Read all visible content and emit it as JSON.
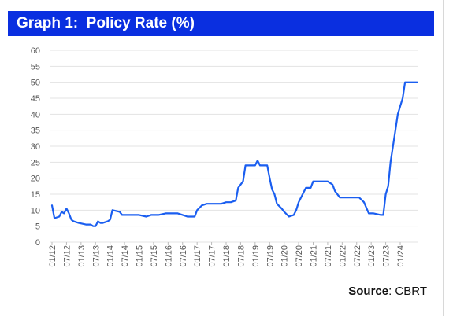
{
  "title": "Graph 1:  Policy Rate (%)",
  "source": {
    "label": "Source",
    "text": ": CBRT"
  },
  "colors": {
    "title_bg": "#0a2fe0",
    "line": "#1a5ef0",
    "grid": "#e3e3e3",
    "axis_text": "#555555"
  },
  "chart_data": {
    "type": "line",
    "title": "Policy Rate (%)",
    "xlabel": "",
    "ylabel": "",
    "ylim": [
      0,
      60
    ],
    "yticks": [
      "0",
      "5",
      "10",
      "15",
      "20",
      "25",
      "30",
      "35",
      "40",
      "45",
      "50",
      "55",
      "60"
    ],
    "xticks": [
      "01/12",
      "07/12",
      "01/13",
      "07/13",
      "01/14",
      "07/14",
      "01/15",
      "07/15",
      "01/16",
      "07/16",
      "01/17",
      "07/17",
      "01/18",
      "07/18",
      "01/19",
      "07/19",
      "01/20",
      "07/20",
      "01/21",
      "07/21",
      "01/22",
      "07/22",
      "01/23",
      "07/23",
      "01/24"
    ],
    "grid": true,
    "legend": "none",
    "series": [
      {
        "x": [
          "2012-01",
          "2012-02",
          "2012-04",
          "2012-05",
          "2012-06",
          "2012-07",
          "2012-08",
          "2012-09",
          "2012-10",
          "2012-12",
          "2013-03",
          "2013-05",
          "2013-06",
          "2013-07",
          "2013-08",
          "2013-09",
          "2013-10",
          "2013-12",
          "2014-01",
          "2014-02",
          "2014-05",
          "2014-06",
          "2014-08",
          "2014-10",
          "2015-01",
          "2015-04",
          "2015-06",
          "2015-09",
          "2015-12",
          "2016-03",
          "2016-05",
          "2016-07",
          "2016-09",
          "2016-11",
          "2016-12",
          "2017-01",
          "2017-03",
          "2017-05",
          "2017-07",
          "2017-09",
          "2017-11",
          "2018-01",
          "2018-03",
          "2018-05",
          "2018-06",
          "2018-08",
          "2018-09",
          "2018-12",
          "2019-01",
          "2019-02",
          "2019-03",
          "2019-05",
          "2019-06",
          "2019-07",
          "2019-08",
          "2019-09",
          "2019-10",
          "2019-12",
          "2020-01",
          "2020-03",
          "2020-05",
          "2020-06",
          "2020-07",
          "2020-09",
          "2020-10",
          "2020-12",
          "2021-01",
          "2021-03",
          "2021-05",
          "2021-07",
          "2021-09",
          "2021-10",
          "2021-12",
          "2022-01",
          "2022-03",
          "2022-06",
          "2022-08",
          "2022-10",
          "2022-12",
          "2023-02",
          "2023-05",
          "2023-06",
          "2023-07",
          "2023-08",
          "2023-09",
          "2023-10",
          "2023-11",
          "2023-12",
          "2024-01",
          "2024-02",
          "2024-03",
          "2024-05"
        ],
        "values": [
          11.5,
          7.5,
          8,
          9.5,
          9,
          10.5,
          9,
          7,
          6.5,
          6,
          5.5,
          5.5,
          5,
          5,
          6.5,
          6,
          6,
          6.5,
          7,
          10,
          9.5,
          8.5,
          8.5,
          8.5,
          8.5,
          8,
          8.5,
          8.5,
          9,
          9,
          9,
          8.5,
          8,
          8,
          8,
          10,
          11.5,
          12,
          12,
          12,
          12,
          12.5,
          12.5,
          13,
          17,
          19,
          24,
          24,
          24,
          25.5,
          24,
          24,
          24,
          20,
          16.5,
          15,
          12,
          10.5,
          9.5,
          8,
          8.5,
          10,
          12.5,
          15.5,
          17,
          17,
          19,
          19,
          19,
          19,
          18,
          16,
          14,
          14,
          14,
          14,
          14,
          12.5,
          9,
          9,
          8.5,
          8.5,
          15,
          17.5,
          25,
          30,
          35,
          40,
          42.5,
          45,
          50,
          50
        ]
      }
    ]
  }
}
